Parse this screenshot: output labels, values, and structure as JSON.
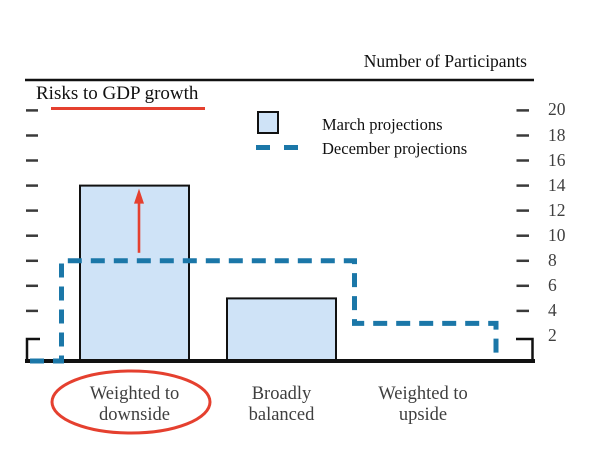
{
  "title": "Number of Participants",
  "panel_label": "Risks to GDP growth",
  "legend": {
    "march_label": "March projections",
    "december_label": "December projections"
  },
  "y_axis": {
    "ticks": [
      20,
      18,
      16,
      14,
      12,
      10,
      8,
      6,
      4,
      2
    ]
  },
  "chart_data": {
    "type": "bar",
    "title": "Risks to GDP growth",
    "xlabel": "",
    "ylabel": "Number of Participants",
    "categories": [
      "Weighted to downside",
      "Broadly balanced",
      "Weighted to upside"
    ],
    "category_label_lines": [
      [
        "Weighted to",
        "downside"
      ],
      [
        "Broadly",
        "balanced"
      ],
      [
        "Weighted to",
        "upside"
      ]
    ],
    "series": [
      {
        "name": "March projections",
        "type": "bar",
        "values": [
          14,
          5,
          0
        ]
      },
      {
        "name": "December projections",
        "type": "step-line",
        "values": [
          8,
          8,
          3
        ]
      }
    ],
    "ylim": [
      0,
      21
    ],
    "y_ticks": [
      2,
      4,
      6,
      8,
      10,
      12,
      14,
      16,
      18,
      20
    ],
    "grid": false,
    "legend_position": "top-center"
  },
  "annotations": {
    "increase_arrow": {
      "category": "Weighted to downside",
      "from_value": 8,
      "to_value": 14,
      "color": "#e5402f"
    },
    "highlight_ellipse": {
      "category": "Weighted to downside",
      "color": "#e5402f"
    },
    "underline_color": "#e5402f"
  },
  "colors": {
    "background": "#ffffff",
    "bar_fill": "#cfe3f7",
    "bar_border": "#111111",
    "december_line": "#1b77a8",
    "annotation_red": "#e5402f",
    "axis_black": "#111111",
    "tick_gray": "#3a3a3a",
    "label_gray": "#3f3f3f"
  }
}
